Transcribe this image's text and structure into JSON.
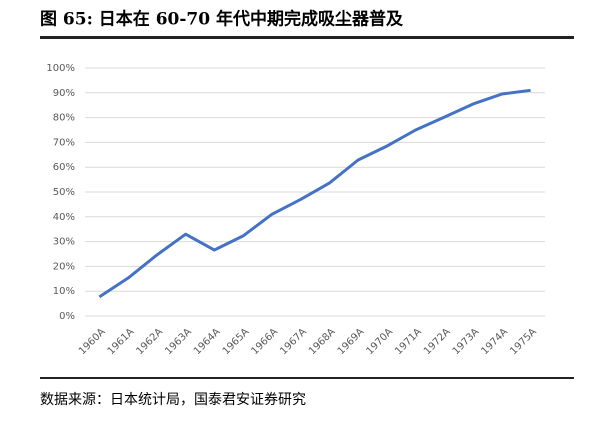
{
  "chart_data": {
    "type": "line",
    "title": "图 65:  日本在 60-70 年代中期完成吸尘器普及",
    "source": "数据来源：日本统计局，国泰君安证券研究",
    "categories": [
      "1960A",
      "1961A",
      "1962A",
      "1963A",
      "1964A",
      "1965A",
      "1966A",
      "1967A",
      "1968A",
      "1969A",
      "1970A",
      "1971A",
      "1972A",
      "1973A",
      "1974A",
      "1975A"
    ],
    "values": [
      7.7,
      15.3,
      24.6,
      33,
      26.6,
      32.3,
      41,
      47,
      53.6,
      62.9,
      68.5,
      75,
      80.2,
      85.5,
      89.5,
      91
    ],
    "color": "#4472c4",
    "ylim": [
      0,
      100
    ],
    "yticks": [
      {
        "value": 0,
        "label": "0%"
      },
      {
        "value": 10,
        "label": "10%"
      },
      {
        "value": 20,
        "label": "20%"
      },
      {
        "value": 30,
        "label": "30%"
      },
      {
        "value": 40,
        "label": "40%"
      },
      {
        "value": 50,
        "label": "50%"
      },
      {
        "value": 60,
        "label": "60%"
      },
      {
        "value": 70,
        "label": "70%"
      },
      {
        "value": 80,
        "label": "80%"
      },
      {
        "value": 90,
        "label": "90%"
      },
      {
        "value": 100,
        "label": "100%"
      }
    ],
    "grid": true
  }
}
